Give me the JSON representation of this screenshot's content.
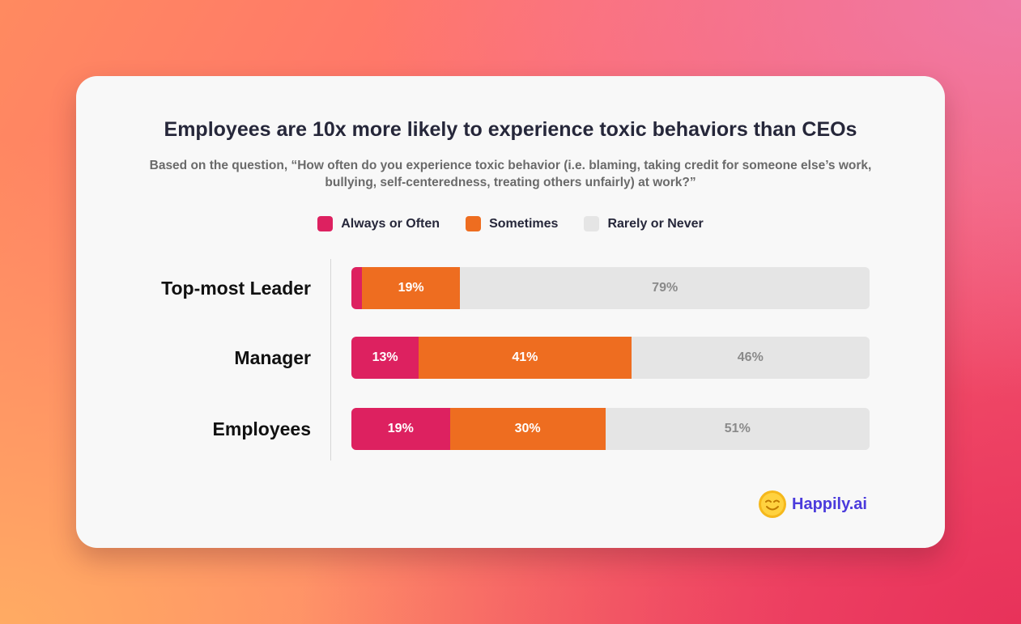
{
  "title": "Employees are 10x more likely to experience toxic behaviors than CEOs",
  "subtitle": "Based on the question, “How often do you experience toxic behavior (i.e. blaming, taking credit for someone else’s work, bullying, self-centeredness, treating others unfairly) at work?”",
  "colors": {
    "always": "#dd2160",
    "sometimes": "#ee6d20",
    "rarely": "#e5e5e5"
  },
  "brand": {
    "name": "Happily.ai",
    "icon": "smiley-face-icon"
  },
  "chart_data": {
    "type": "bar",
    "orientation": "horizontal",
    "stacked": true,
    "categories": [
      "Top-most Leader",
      "Manager",
      "Employees"
    ],
    "series": [
      {
        "name": "Always or Often",
        "values": [
          2,
          13,
          19
        ],
        "labels": [
          "",
          "13%",
          "19%"
        ],
        "color": "#dd2160"
      },
      {
        "name": "Sometimes",
        "values": [
          19,
          41,
          30
        ],
        "labels": [
          "19%",
          "41%",
          "30%"
        ],
        "color": "#ee6d20"
      },
      {
        "name": "Rarely or Never",
        "values": [
          79,
          46,
          51
        ],
        "labels": [
          "79%",
          "46%",
          "51%"
        ],
        "color": "#e5e5e5"
      }
    ],
    "xlim": [
      0,
      100
    ],
    "legend": "top-center",
    "grid": false
  }
}
